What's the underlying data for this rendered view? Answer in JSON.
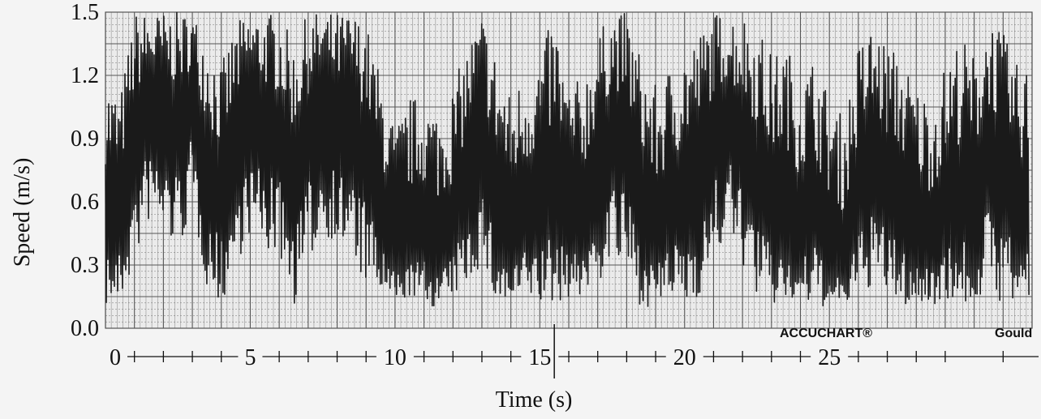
{
  "chart_data": {
    "type": "line",
    "title": "",
    "xlabel": "Time (s)",
    "ylabel": "Speed (m/s)",
    "xlim": [
      0,
      32
    ],
    "ylim": [
      0,
      1.5
    ],
    "x_ticks": [
      0,
      5,
      10,
      15,
      20,
      25
    ],
    "x_tick_labels": [
      "0",
      "5",
      "10",
      "15",
      "20",
      "25"
    ],
    "y_ticks": [
      0,
      0.3,
      0.6,
      0.9,
      1.2,
      1.5
    ],
    "y_tick_labels": [
      "0.0",
      "0.3",
      "0.6",
      "0.9",
      "1.2",
      "1.5"
    ],
    "grid": true,
    "legend": "none",
    "annotations": [
      "ACCUCHART®",
      "Gould"
    ],
    "line_color": "#1a1a1a",
    "grid_color": "#555555",
    "series": [
      {
        "x": [
          0,
          0.5,
          1,
          1.5,
          2,
          2.5,
          3,
          3.5,
          4,
          4.5,
          5,
          5.5,
          6,
          6.5,
          7,
          7.5,
          8,
          8.5,
          9,
          9.5,
          10,
          10.5,
          11,
          11.5,
          12,
          12.5,
          13,
          13.5,
          14,
          14.5,
          15,
          15.5,
          16,
          16.5,
          17,
          17.5,
          18,
          18.5,
          19,
          19.5,
          20,
          20.5,
          21,
          21.5,
          22,
          22.5,
          23,
          23.5,
          24,
          24.5,
          25,
          25.5,
          26,
          26.5,
          27,
          27.5,
          28,
          28.5,
          29,
          29.5,
          30,
          30.5,
          31,
          31.5
        ],
        "y_mean": [
          0.55,
          0.5,
          0.9,
          1.05,
          1.0,
          0.95,
          1.1,
          0.75,
          0.6,
          0.85,
          1.0,
          0.95,
          0.9,
          0.7,
          0.9,
          1.05,
          0.95,
          1.0,
          0.8,
          0.55,
          0.35,
          0.4,
          0.45,
          0.35,
          0.45,
          0.7,
          0.9,
          0.55,
          0.4,
          0.5,
          0.55,
          0.65,
          0.45,
          0.5,
          0.75,
          0.95,
          0.85,
          0.55,
          0.4,
          0.5,
          0.6,
          0.7,
          0.9,
          1.0,
          0.85,
          0.7,
          0.55,
          0.6,
          0.45,
          0.55,
          0.35,
          0.3,
          0.6,
          0.75,
          0.65,
          0.55,
          0.45,
          0.4,
          0.5,
          0.6,
          0.55,
          0.8,
          0.7,
          0.55
        ],
        "y_min": [
          0.1,
          0.1,
          0.3,
          0.5,
          0.45,
          0.35,
          0.55,
          0.2,
          0.1,
          0.3,
          0.45,
          0.35,
          0.35,
          0.1,
          0.3,
          0.45,
          0.4,
          0.3,
          0.2,
          0.15,
          0.1,
          0.15,
          0.1,
          0.1,
          0.15,
          0.2,
          0.3,
          0.1,
          0.1,
          0.15,
          0.1,
          0.1,
          0.15,
          0.15,
          0.2,
          0.3,
          0.25,
          0.1,
          0.1,
          0.15,
          0.1,
          0.15,
          0.3,
          0.45,
          0.3,
          0.15,
          0.1,
          0.1,
          0.1,
          0.1,
          0.1,
          0.1,
          0.15,
          0.2,
          0.15,
          0.1,
          0.1,
          0.1,
          0.15,
          0.1,
          0.1,
          0.2,
          0.1,
          0.1
        ],
        "y_max": [
          1.2,
          1.1,
          1.5,
          1.5,
          1.5,
          1.5,
          1.5,
          1.4,
          1.25,
          1.45,
          1.5,
          1.5,
          1.5,
          1.35,
          1.5,
          1.5,
          1.5,
          1.5,
          1.45,
          1.2,
          0.95,
          1.1,
          1.1,
          1.05,
          1.15,
          1.35,
          1.5,
          1.3,
          1.1,
          1.25,
          1.3,
          1.5,
          1.15,
          1.2,
          1.4,
          1.5,
          1.5,
          1.3,
          1.15,
          1.25,
          1.35,
          1.4,
          1.5,
          1.5,
          1.5,
          1.45,
          1.3,
          1.35,
          1.2,
          1.3,
          1.1,
          1.0,
          1.35,
          1.45,
          1.35,
          1.3,
          1.15,
          1.1,
          1.25,
          1.4,
          1.3,
          1.5,
          1.4,
          1.25
        ]
      }
    ]
  }
}
